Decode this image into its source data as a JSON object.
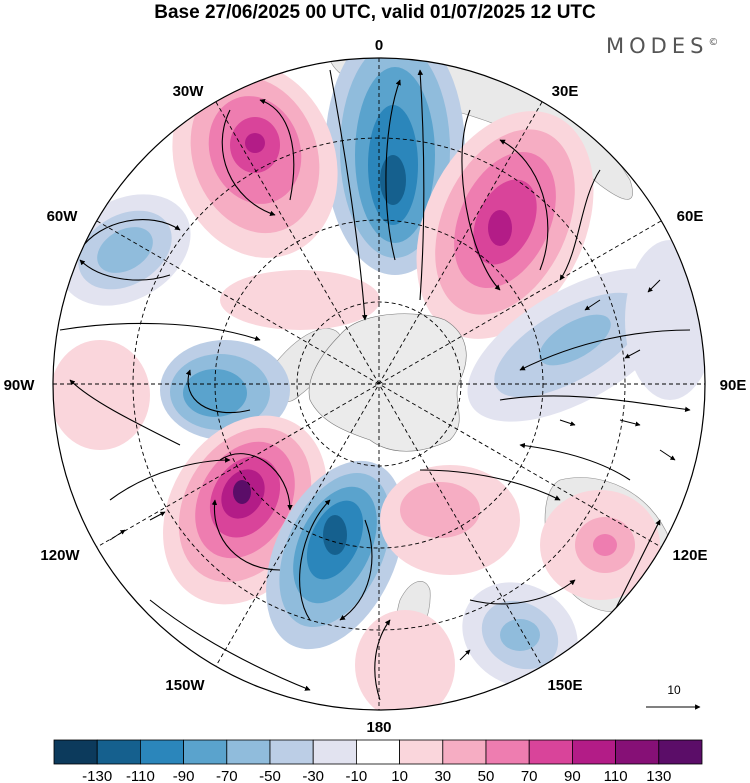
{
  "title": "Base 27/06/2025 00 UTC, valid 01/07/2025 12 UTC",
  "brand": "MODES",
  "brand_mark": "©",
  "longitude_labels": {
    "n": "0",
    "ne": "30E",
    "e2": "60E",
    "e": "90E",
    "se2": "120E",
    "se": "150E",
    "s": "180",
    "sw": "150W",
    "sw2": "120W",
    "w": "90W",
    "nw2": "60W",
    "nw": "30W"
  },
  "reference_vector": "10",
  "colorbar": {
    "ticks": [
      "-130",
      "-110",
      "-90",
      "-70",
      "-50",
      "-30",
      "-10",
      "10",
      "30",
      "50",
      "70",
      "90",
      "110",
      "130"
    ],
    "colors": [
      "#0c3a5c",
      "#15608e",
      "#2b86bb",
      "#5aa3cd",
      "#90bcdc",
      "#bccee6",
      "#e2e3f0",
      "#ffffff",
      "#fad6dc",
      "#f6adc3",
      "#ee7db0",
      "#d9449a",
      "#b31c87",
      "#861076",
      "#5b0d68"
    ]
  },
  "map_colors": {
    "land": "#e8e8e8",
    "antarctica": "#ebebeb"
  }
}
